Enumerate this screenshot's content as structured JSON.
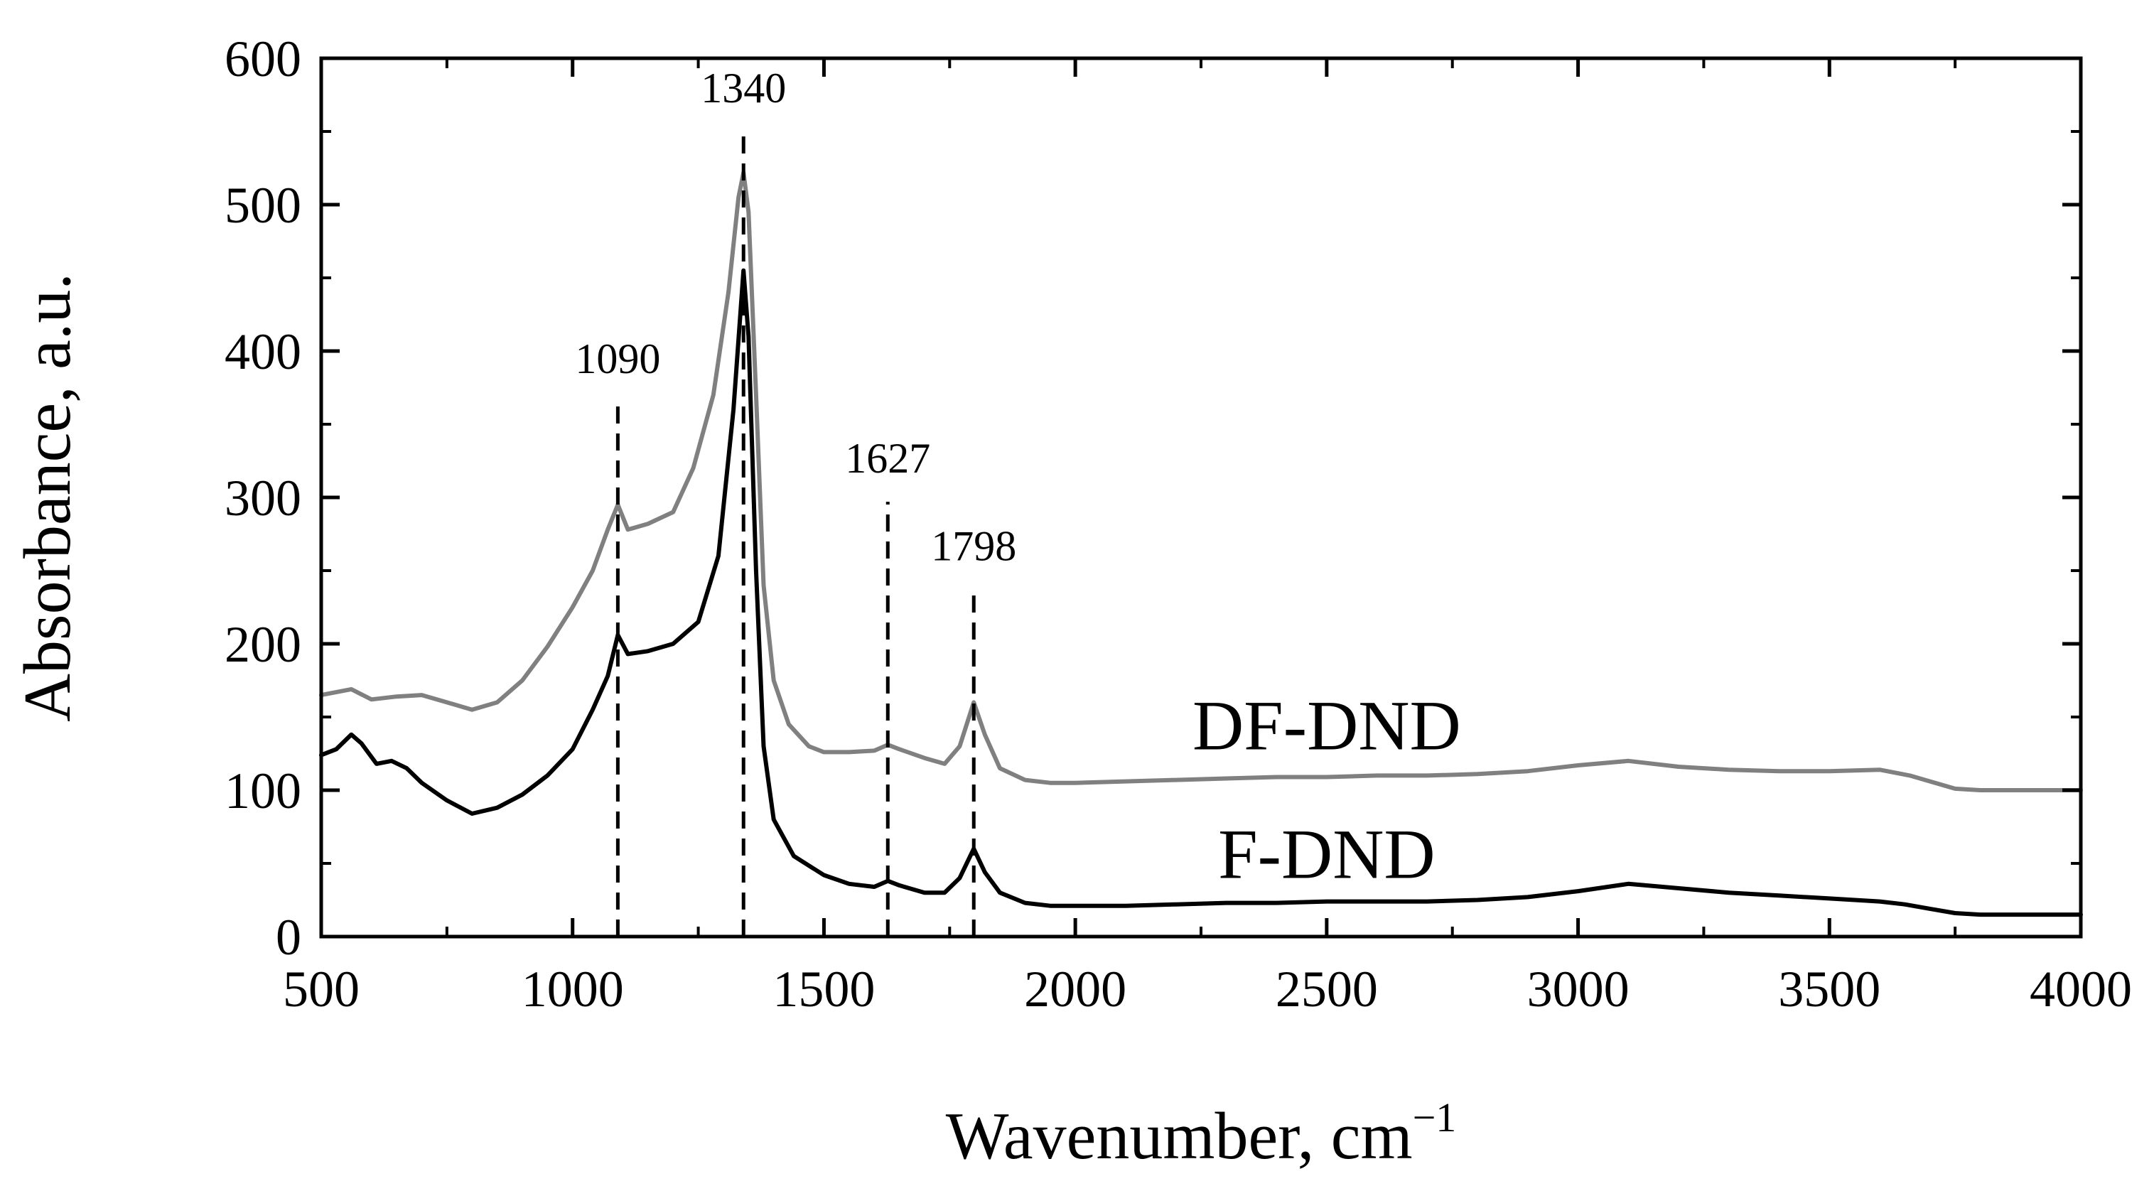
{
  "chart_data": {
    "type": "line",
    "title": "",
    "xlabel": "Wavenumber, cm",
    "xlabel_superscript": "−1",
    "ylabel": "Absorbance, a.u.",
    "xlim": [
      500,
      4000
    ],
    "ylim": [
      0,
      600
    ],
    "x_ticks": [
      500,
      1000,
      1500,
      2000,
      2500,
      3000,
      3500,
      4000
    ],
    "y_ticks": [
      0,
      100,
      200,
      300,
      400,
      500,
      600
    ],
    "grid": false,
    "series": [
      {
        "name": "DF-DND",
        "color": "#808080",
        "points": [
          [
            500,
            165
          ],
          [
            560,
            169
          ],
          [
            600,
            162
          ],
          [
            650,
            164
          ],
          [
            700,
            165
          ],
          [
            750,
            160
          ],
          [
            800,
            155
          ],
          [
            850,
            160
          ],
          [
            900,
            175
          ],
          [
            950,
            198
          ],
          [
            1000,
            225
          ],
          [
            1040,
            250
          ],
          [
            1070,
            278
          ],
          [
            1090,
            295
          ],
          [
            1110,
            278
          ],
          [
            1150,
            282
          ],
          [
            1200,
            290
          ],
          [
            1240,
            320
          ],
          [
            1280,
            370
          ],
          [
            1310,
            440
          ],
          [
            1330,
            505
          ],
          [
            1340,
            522
          ],
          [
            1350,
            495
          ],
          [
            1365,
            370
          ],
          [
            1380,
            240
          ],
          [
            1400,
            175
          ],
          [
            1430,
            145
          ],
          [
            1470,
            130
          ],
          [
            1500,
            126
          ],
          [
            1550,
            126
          ],
          [
            1600,
            127
          ],
          [
            1627,
            131
          ],
          [
            1650,
            128
          ],
          [
            1700,
            122
          ],
          [
            1740,
            118
          ],
          [
            1770,
            130
          ],
          [
            1798,
            160
          ],
          [
            1820,
            138
          ],
          [
            1850,
            115
          ],
          [
            1900,
            107
          ],
          [
            1950,
            105
          ],
          [
            2000,
            105
          ],
          [
            2100,
            106
          ],
          [
            2200,
            107
          ],
          [
            2300,
            108
          ],
          [
            2400,
            109
          ],
          [
            2500,
            109
          ],
          [
            2600,
            110
          ],
          [
            2700,
            110
          ],
          [
            2800,
            111
          ],
          [
            2900,
            113
          ],
          [
            3000,
            117
          ],
          [
            3100,
            120
          ],
          [
            3200,
            116
          ],
          [
            3300,
            114
          ],
          [
            3400,
            113
          ],
          [
            3500,
            113
          ],
          [
            3600,
            114
          ],
          [
            3630,
            112
          ],
          [
            3660,
            110
          ],
          [
            3700,
            106
          ],
          [
            3750,
            101
          ],
          [
            3800,
            100
          ],
          [
            3900,
            100
          ],
          [
            4000,
            100
          ]
        ]
      },
      {
        "name": "F-DND",
        "color": "#000000",
        "points": [
          [
            500,
            124
          ],
          [
            530,
            128
          ],
          [
            560,
            138
          ],
          [
            580,
            132
          ],
          [
            610,
            118
          ],
          [
            640,
            120
          ],
          [
            670,
            115
          ],
          [
            700,
            105
          ],
          [
            750,
            93
          ],
          [
            800,
            84
          ],
          [
            850,
            88
          ],
          [
            900,
            97
          ],
          [
            950,
            110
          ],
          [
            1000,
            128
          ],
          [
            1040,
            155
          ],
          [
            1070,
            178
          ],
          [
            1090,
            206
          ],
          [
            1110,
            193
          ],
          [
            1150,
            195
          ],
          [
            1200,
            200
          ],
          [
            1250,
            215
          ],
          [
            1290,
            260
          ],
          [
            1320,
            360
          ],
          [
            1340,
            455
          ],
          [
            1350,
            410
          ],
          [
            1365,
            250
          ],
          [
            1380,
            130
          ],
          [
            1400,
            80
          ],
          [
            1440,
            55
          ],
          [
            1500,
            42
          ],
          [
            1550,
            36
          ],
          [
            1600,
            34
          ],
          [
            1627,
            38
          ],
          [
            1650,
            35
          ],
          [
            1700,
            30
          ],
          [
            1740,
            30
          ],
          [
            1770,
            40
          ],
          [
            1798,
            60
          ],
          [
            1820,
            44
          ],
          [
            1850,
            30
          ],
          [
            1900,
            23
          ],
          [
            1950,
            21
          ],
          [
            2000,
            21
          ],
          [
            2100,
            21
          ],
          [
            2200,
            22
          ],
          [
            2300,
            23
          ],
          [
            2400,
            23
          ],
          [
            2500,
            24
          ],
          [
            2600,
            24
          ],
          [
            2700,
            24
          ],
          [
            2800,
            25
          ],
          [
            2900,
            27
          ],
          [
            3000,
            31
          ],
          [
            3100,
            36
          ],
          [
            3200,
            33
          ],
          [
            3300,
            30
          ],
          [
            3400,
            28
          ],
          [
            3500,
            26
          ],
          [
            3600,
            24
          ],
          [
            3650,
            22
          ],
          [
            3700,
            19
          ],
          [
            3750,
            16
          ],
          [
            3800,
            15
          ],
          [
            3900,
            15
          ],
          [
            4000,
            15
          ]
        ]
      }
    ],
    "peak_markers": [
      {
        "label": "1090",
        "x": 1090,
        "y_top": 365,
        "label_y": 385
      },
      {
        "label": "1340",
        "x": 1340,
        "y_top": 550,
        "label_y": 570
      },
      {
        "label": "1627",
        "x": 1627,
        "y_top": 297,
        "label_y": 317
      },
      {
        "label": "1798",
        "x": 1798,
        "y_top": 237,
        "label_y": 257
      }
    ],
    "series_labels": [
      {
        "text": "DF-DND",
        "x": 2500,
        "y": 128
      },
      {
        "text": "F-DND",
        "x": 2500,
        "y": 40
      }
    ]
  }
}
